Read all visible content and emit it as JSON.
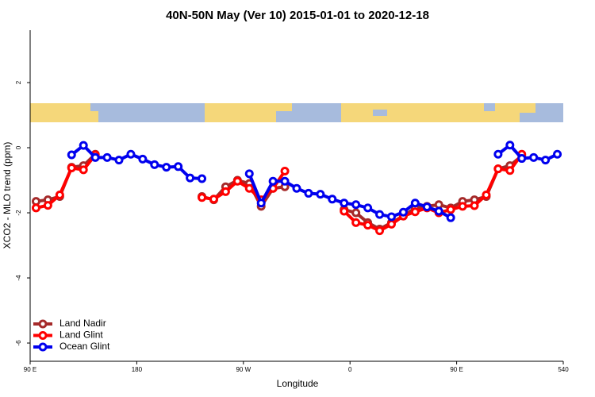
{
  "chart_data": {
    "type": "line",
    "title": "40N-50N May (Ver 10)   2015-01-01 to 2020-12-18",
    "x_label": "Longitude",
    "y_label": "XCO2 - MLO trend (ppm)",
    "x": [
      95,
      105,
      115,
      125,
      135,
      145,
      155,
      165,
      175,
      185,
      195,
      205,
      215,
      225,
      235,
      245,
      255,
      265,
      275,
      285,
      295,
      305,
      315,
      325,
      335,
      345,
      355,
      365,
      375,
      385,
      395,
      405,
      415,
      425,
      435,
      445,
      455,
      465,
      475,
      485,
      495,
      505,
      515,
      525,
      535
    ],
    "xlim": [
      90,
      540
    ],
    "xticks": [
      {
        "value": 90,
        "label": "90 E"
      },
      180,
      {
        "value": 270,
        "label": "90 W"
      },
      {
        "value": 360,
        "label": "0"
      },
      {
        "value": 450,
        "label": "90 E"
      },
      540
    ],
    "ylim": [
      -6.56,
      3.61
    ],
    "yticks": [
      -6,
      -4,
      -2,
      0,
      2
    ],
    "legend": "bottom-left",
    "series": [
      {
        "name": "Land Nadir",
        "color": "#a52a2a",
        "values": [
          -1.65,
          -1.6,
          -1.5,
          -0.6,
          -0.55,
          -0.2,
          null,
          null,
          null,
          null,
          null,
          null,
          null,
          null,
          -1.5,
          -1.6,
          -1.2,
          -1.0,
          -1.1,
          -1.8,
          -1.25,
          -1.2,
          null,
          null,
          null,
          null,
          -1.9,
          -2.0,
          -2.3,
          -2.5,
          -2.3,
          -2.1,
          -1.85,
          -1.8,
          -1.75,
          -1.85,
          -1.65,
          -1.6,
          -1.5,
          -0.65,
          -0.55,
          -0.25,
          null,
          null,
          null
        ]
      },
      {
        "name": "Land Glint",
        "color": "#ff0000",
        "values": [
          -1.85,
          -1.77,
          -1.45,
          -0.62,
          -0.68,
          -0.22,
          null,
          null,
          null,
          null,
          null,
          null,
          null,
          null,
          -1.53,
          -1.58,
          -1.35,
          -1.03,
          -1.25,
          -1.6,
          -1.25,
          -0.72,
          null,
          null,
          null,
          null,
          -1.95,
          -2.3,
          -2.38,
          -2.55,
          -2.35,
          -2.1,
          -1.97,
          -1.85,
          -2.0,
          -1.9,
          -1.8,
          -1.78,
          -1.45,
          -0.65,
          -0.7,
          -0.2,
          null,
          null,
          null
        ]
      },
      {
        "name": "Ocean Glint",
        "color": "#0000ee",
        "values": [
          null,
          null,
          null,
          -0.22,
          0.07,
          -0.3,
          -0.3,
          -0.38,
          -0.2,
          -0.35,
          -0.52,
          -0.6,
          -0.58,
          -0.93,
          -0.95,
          null,
          null,
          null,
          -0.8,
          -1.7,
          -1.03,
          -1.03,
          -1.25,
          -1.4,
          -1.43,
          -1.58,
          -1.7,
          -1.75,
          -1.85,
          -2.05,
          -2.12,
          -1.98,
          -1.7,
          -1.82,
          -1.95,
          -2.15,
          null,
          null,
          null,
          -0.2,
          0.08,
          -0.33,
          -0.3,
          -0.38,
          -0.2
        ]
      }
    ]
  }
}
